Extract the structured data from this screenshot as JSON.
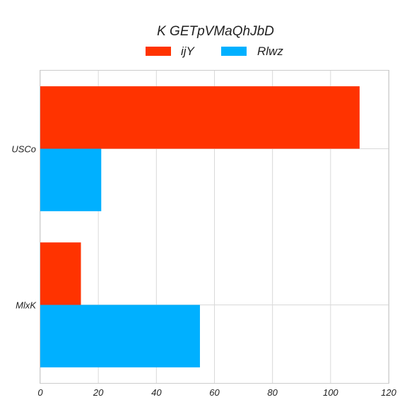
{
  "chart_data": {
    "type": "bar",
    "orientation": "horizontal",
    "title": "K GETpVMaQhJbD",
    "categories": [
      "USCo",
      "MlxK"
    ],
    "series": [
      {
        "name": "ijY",
        "color": "#ff3300",
        "values": [
          110,
          14
        ]
      },
      {
        "name": "Rlwz",
        "color": "#00b0ff",
        "values": [
          21,
          55
        ]
      }
    ],
    "xlim": [
      0,
      120
    ],
    "xticks": [
      "0",
      "20",
      "40",
      "60",
      "80",
      "100",
      "120"
    ],
    "grid": true,
    "legend_position": "top"
  }
}
